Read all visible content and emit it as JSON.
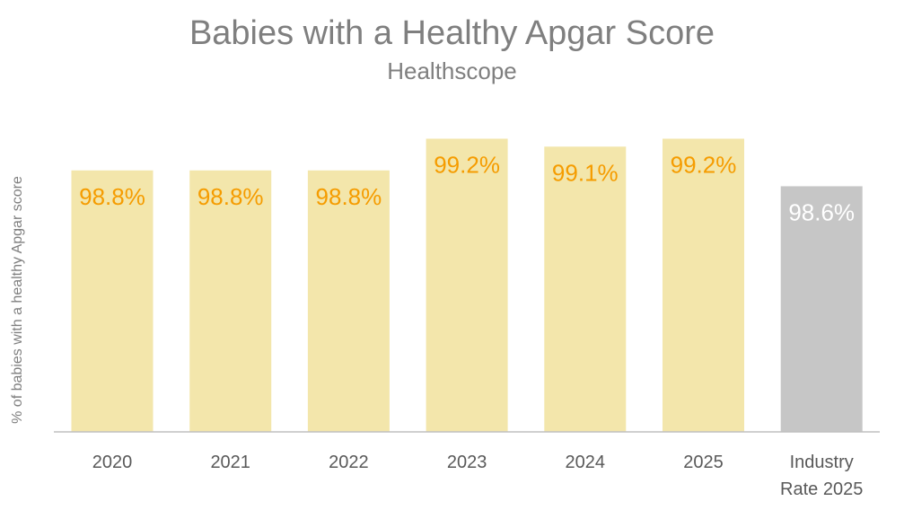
{
  "chart_data": {
    "type": "bar",
    "title": "Babies with a Healthy Apgar Score",
    "subtitle": "Healthscope",
    "ylabel": "% of babies with a healthy Apgar score",
    "xlabel": "",
    "categories": [
      "2020",
      "2021",
      "2022",
      "2023",
      "2024",
      "2025",
      "Industry Rate 2025"
    ],
    "values": [
      98.8,
      98.8,
      98.8,
      99.2,
      99.1,
      99.2,
      98.6
    ],
    "data_labels": [
      "98.8%",
      "98.8%",
      "98.8%",
      "99.2%",
      "99.1%",
      "99.2%",
      "98.6%"
    ],
    "ylim": [
      95.5,
      99.5
    ],
    "grid": false,
    "legend": "none",
    "colors": {
      "bar": "#f3e6ab",
      "bar_benchmark": "#c6c6c6",
      "label": "#f59c00",
      "label_benchmark": "#ffffff",
      "axis": "#bfbfbf"
    }
  }
}
